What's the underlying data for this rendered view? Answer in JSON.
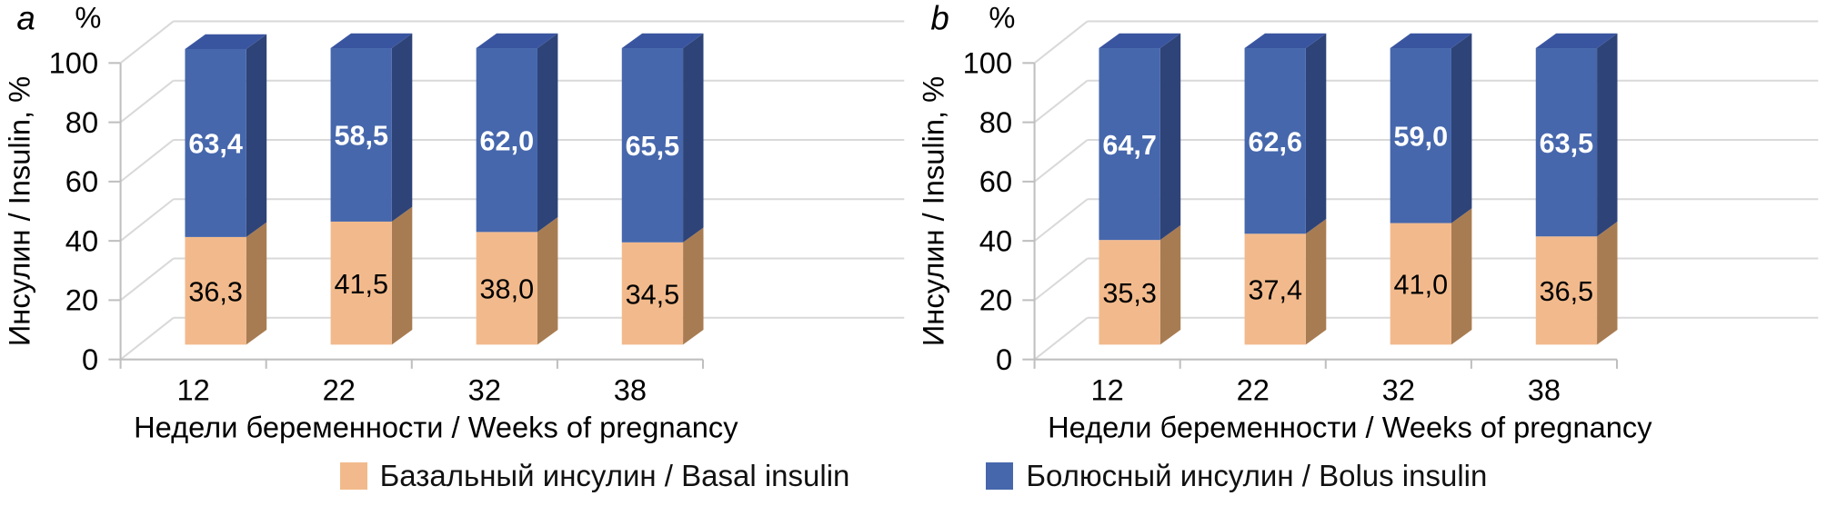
{
  "legend": {
    "items": [
      {
        "label": "Базальный инсулин / Basal insulin",
        "color": "#F2BA8C"
      },
      {
        "label": "Болюсный инсулин / Bolus insulin",
        "color": "#4667AC"
      }
    ]
  },
  "chart_data": [
    {
      "type": "bar",
      "stacked": true,
      "three_d": true,
      "panel_label": "a",
      "y_unit_label": "%",
      "ylabel": "Инсулин / Insulin, %",
      "xlabel": "Недели беременности / Weeks of pregnancy",
      "categories": [
        "12",
        "22",
        "32",
        "38"
      ],
      "ylim": [
        0,
        100
      ],
      "yticks": [
        0,
        20,
        40,
        60,
        80,
        100
      ],
      "grid": true,
      "legend_position": "bottom",
      "series": [
        {
          "name": "Базальный инсулин / Basal insulin",
          "values": [
            36.3,
            41.5,
            38.0,
            34.5
          ],
          "color": "#F2BA8C",
          "side_color": "#A87C52",
          "top_color": "#D79F6C",
          "label_color": "#000000",
          "label_bold": false
        },
        {
          "name": "Болюсный инсулин / Bolus insulin",
          "values": [
            63.4,
            58.5,
            62.0,
            65.5
          ],
          "color": "#4667AC",
          "side_color": "#2E4377",
          "top_color": "#3A55A0",
          "label_color": "#FFFFFF",
          "label_bold": true
        }
      ]
    },
    {
      "type": "bar",
      "stacked": true,
      "three_d": true,
      "panel_label": "b",
      "y_unit_label": "%",
      "ylabel": "Инсулин / Insulin, %",
      "xlabel": "Недели беременности / Weeks of pregnancy",
      "categories": [
        "12",
        "22",
        "32",
        "38"
      ],
      "ylim": [
        0,
        100
      ],
      "yticks": [
        0,
        20,
        40,
        60,
        80,
        100
      ],
      "grid": true,
      "legend_position": "bottom",
      "series": [
        {
          "name": "Базальный инсулин / Basal insulin",
          "values": [
            35.3,
            37.4,
            41.0,
            36.5
          ],
          "color": "#F2BA8C",
          "side_color": "#A87C52",
          "top_color": "#D79F6C",
          "label_color": "#000000",
          "label_bold": false
        },
        {
          "name": "Болюсный инсулин / Bolus insulin",
          "values": [
            64.7,
            62.6,
            59.0,
            63.5
          ],
          "color": "#4667AC",
          "side_color": "#2E4377",
          "top_color": "#3A55A0",
          "label_color": "#FFFFFF",
          "label_bold": true
        }
      ]
    }
  ]
}
